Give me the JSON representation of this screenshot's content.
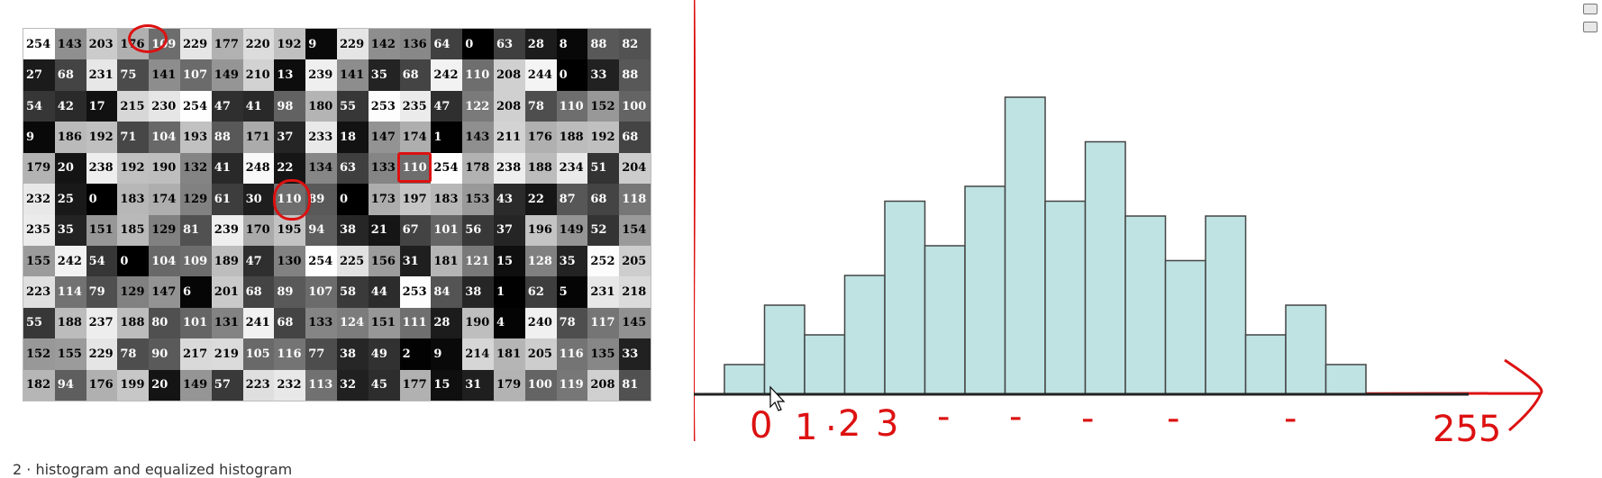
{
  "image_grid": {
    "rows": [
      [
        254,
        143,
        203,
        176,
        109,
        229,
        177,
        220,
        192,
        9,
        229,
        142,
        136,
        64,
        0,
        63,
        28,
        8,
        88,
        82
      ],
      [
        27,
        68,
        231,
        75,
        141,
        107,
        149,
        210,
        13,
        239,
        141,
        35,
        68,
        242,
        110,
        208,
        244,
        0,
        33,
        88
      ],
      [
        54,
        42,
        17,
        215,
        230,
        254,
        47,
        41,
        98,
        180,
        55,
        253,
        235,
        47,
        122,
        208,
        78,
        110,
        152,
        100
      ],
      [
        9,
        186,
        192,
        71,
        104,
        193,
        88,
        171,
        37,
        233,
        18,
        147,
        174,
        1,
        143,
        211,
        176,
        188,
        192,
        68
      ],
      [
        179,
        20,
        238,
        192,
        190,
        132,
        41,
        248,
        22,
        134,
        63,
        133,
        110,
        254,
        178,
        238,
        188,
        234,
        51,
        204
      ],
      [
        232,
        25,
        0,
        183,
        174,
        129,
        61,
        30,
        110,
        89,
        0,
        173,
        197,
        183,
        153,
        43,
        22,
        87,
        68,
        118
      ],
      [
        235,
        35,
        151,
        185,
        129,
        81,
        239,
        170,
        195,
        94,
        38,
        21,
        67,
        101,
        56,
        37,
        196,
        149,
        52,
        154
      ],
      [
        155,
        242,
        54,
        0,
        104,
        109,
        189,
        47,
        130,
        254,
        225,
        156,
        31,
        181,
        121,
        15,
        128,
        35,
        252,
        205
      ],
      [
        223,
        114,
        79,
        129,
        147,
        6,
        201,
        68,
        89,
        107,
        58,
        44,
        253,
        84,
        38,
        1,
        62,
        5,
        231,
        218
      ],
      [
        55,
        188,
        237,
        188,
        80,
        101,
        131,
        241,
        68,
        133,
        124,
        151,
        111,
        28,
        190,
        4,
        240,
        78,
        117,
        145
      ],
      [
        152,
        155,
        229,
        78,
        90,
        217,
        219,
        105,
        116,
        77,
        38,
        49,
        2,
        9,
        214,
        181,
        205,
        116,
        135,
        33
      ],
      [
        182,
        94,
        176,
        199,
        20,
        149,
        57,
        223,
        232,
        113,
        32,
        45,
        177,
        15,
        31,
        179,
        100,
        119,
        208,
        81
      ]
    ]
  },
  "histogram": {
    "type": "bar",
    "values": [
      2,
      6,
      4,
      8,
      13,
      10,
      14,
      20,
      13,
      17,
      12,
      9,
      12,
      4,
      6,
      2
    ],
    "ylim": [
      0,
      22
    ],
    "bar_color": "#bfe3e3",
    "outline_color": "#444444",
    "axis_color": "#222222"
  },
  "annotations": {
    "color": "#dd1111",
    "axis_labels": [
      "0",
      "1",
      ".",
      "2",
      "3",
      "-",
      "-",
      "-",
      "-",
      "-",
      "255"
    ]
  },
  "side_tools": {
    "icons": [
      "layers-icon",
      "image-icon"
    ]
  },
  "bottom_text": "2   · histogram and equalized histogram"
}
